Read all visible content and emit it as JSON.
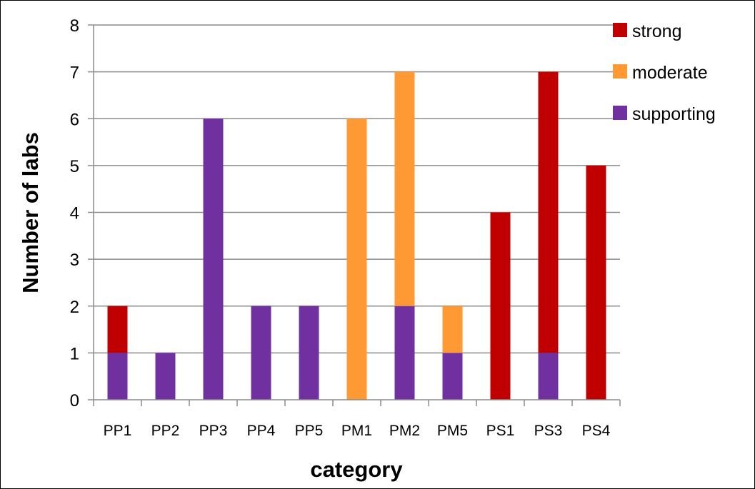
{
  "chart_data": {
    "type": "bar",
    "stacked": true,
    "title": "",
    "xlabel": "category",
    "ylabel": "Number of labs",
    "ylim": [
      0,
      8
    ],
    "yticks": [
      0,
      1,
      2,
      3,
      4,
      5,
      6,
      7,
      8
    ],
    "grid": true,
    "legend_position": "top-right",
    "categories": [
      "PP1",
      "PP2",
      "PP3",
      "PP4",
      "PP5",
      "PM1",
      "PM2",
      "PM5",
      "PS1",
      "PS3",
      "PS4"
    ],
    "series": [
      {
        "name": "supporting",
        "color": "#7030a0",
        "values": [
          1,
          1,
          6,
          2,
          2,
          0,
          2,
          1,
          0,
          1,
          0
        ]
      },
      {
        "name": "moderate",
        "color": "#ff9933",
        "values": [
          0,
          0,
          0,
          0,
          0,
          6,
          5,
          1,
          0,
          0,
          0
        ]
      },
      {
        "name": "strong",
        "color": "#c00000",
        "values": [
          1,
          0,
          0,
          0,
          0,
          0,
          0,
          0,
          4,
          6,
          5
        ]
      }
    ],
    "legend_order": [
      "strong",
      "moderate",
      "supporting"
    ]
  }
}
